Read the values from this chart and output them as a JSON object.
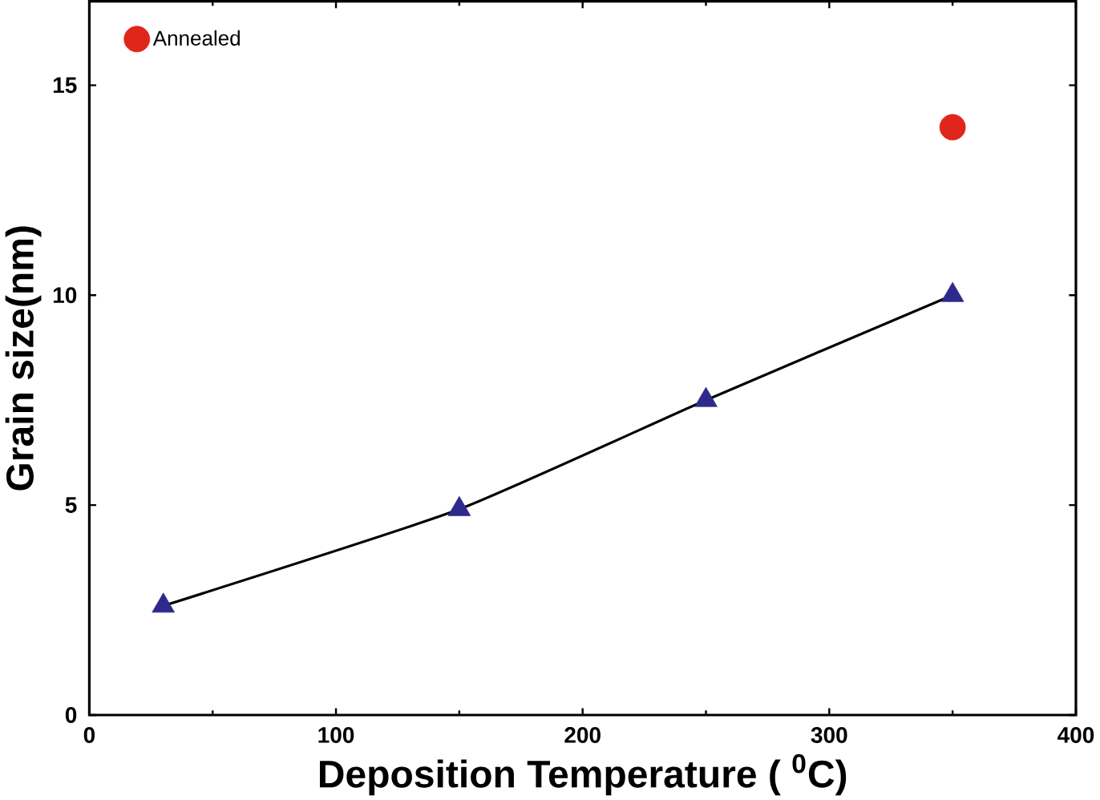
{
  "chart_data": {
    "type": "scatter",
    "xlabel": "Deposition Temperature ( $^{0}$C)",
    "ylabel": "Grain size(nm)",
    "x": [
      30,
      150,
      250,
      350
    ],
    "series": [
      {
        "type": "line",
        "color": "#000000",
        "marker": "none",
        "values": [
          2.6,
          4.9,
          7.5,
          10.0
        ]
      },
      {
        "color": "#2e2a8c",
        "marker": "triangle",
        "values": [
          2.6,
          4.9,
          7.5,
          10.0
        ]
      },
      {
        "name": "Annealed",
        "color": "#e0261b",
        "marker": "circle",
        "x": [
          350
        ],
        "values": [
          14.0
        ]
      }
    ],
    "xlim": [
      0,
      400
    ],
    "ylim": [
      0,
      17
    ],
    "xticks": [
      0,
      100,
      200,
      300,
      400
    ],
    "yticks": [
      0,
      5,
      10,
      15
    ],
    "legend": "top left",
    "grid": false
  }
}
